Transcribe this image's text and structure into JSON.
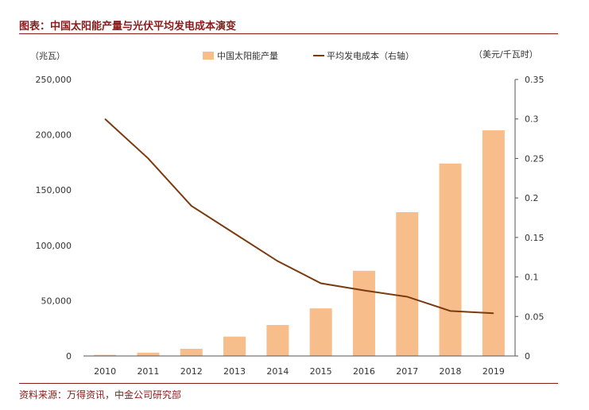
{
  "title": "图表：中国太阳能产量与光伏平均发电成本演变",
  "source": "资料来源：万得资讯，中金公司研究部",
  "colors": {
    "bar": "#f7bd8b",
    "line": "#7a3b10",
    "title": "#8b1a1a"
  },
  "chart_data": {
    "type": "bar+line",
    "categories": [
      "2010",
      "2011",
      "2012",
      "2013",
      "2014",
      "2015",
      "2016",
      "2017",
      "2018",
      "2019"
    ],
    "series": [
      {
        "name": "中国太阳能产量",
        "type": "bar",
        "axis": "left",
        "values": [
          1000,
          3000,
          6500,
          17500,
          28000,
          43000,
          77000,
          130000,
          174000,
          204000
        ]
      },
      {
        "name": "平均发电成本（右轴）",
        "type": "line",
        "axis": "right",
        "values": [
          0.3,
          0.25,
          0.19,
          0.155,
          0.12,
          0.092,
          0.083,
          0.075,
          0.057,
          0.054
        ]
      }
    ],
    "left_axis": {
      "unit": "（兆瓦）",
      "ylim": [
        0,
        250000
      ],
      "ticks": [
        "0",
        "50,000",
        "100,000",
        "150,000",
        "200,000",
        "250,000"
      ]
    },
    "right_axis": {
      "unit": "（美元/千瓦时）",
      "ylim": [
        0,
        0.35
      ],
      "ticks": [
        "0",
        "0.05",
        "0.1",
        "0.15",
        "0.2",
        "0.25",
        "0.3",
        "0.35"
      ]
    },
    "grid": false,
    "legend_position": "top"
  }
}
